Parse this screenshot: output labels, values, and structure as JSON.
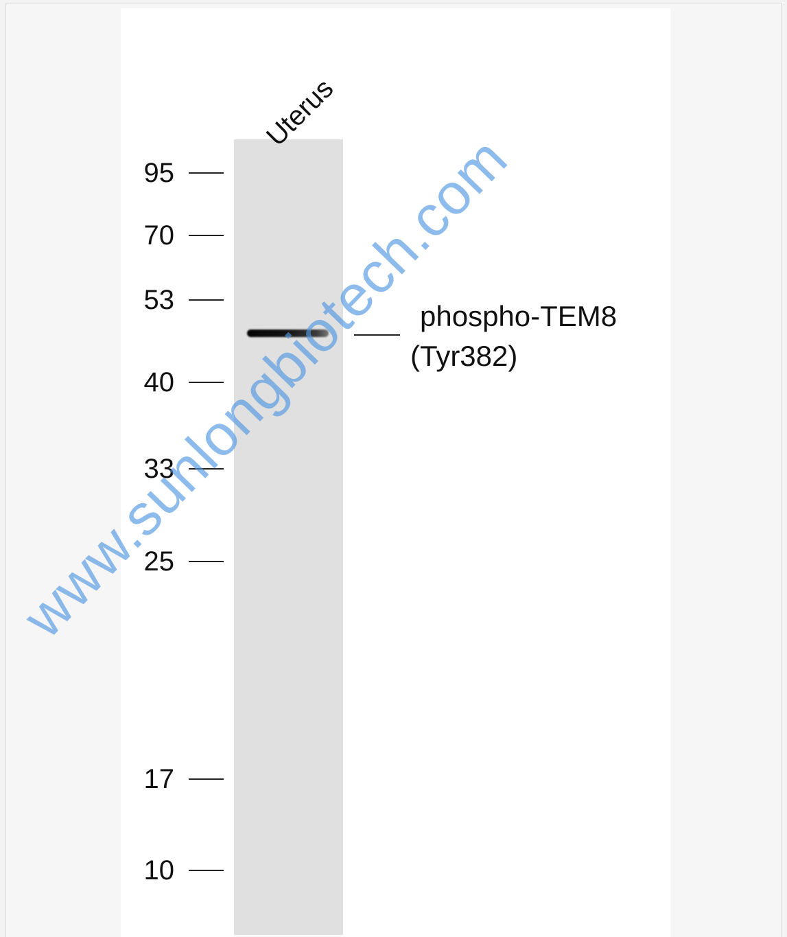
{
  "lane_label": "Uterus",
  "markers": [
    "95",
    "70",
    "53",
    "40",
    "33",
    "25",
    "17",
    "10"
  ],
  "band_label": [
    "phospho-TEM8",
    "(Tyr382)"
  ],
  "watermark": "www.sunlongbiotech.com"
}
